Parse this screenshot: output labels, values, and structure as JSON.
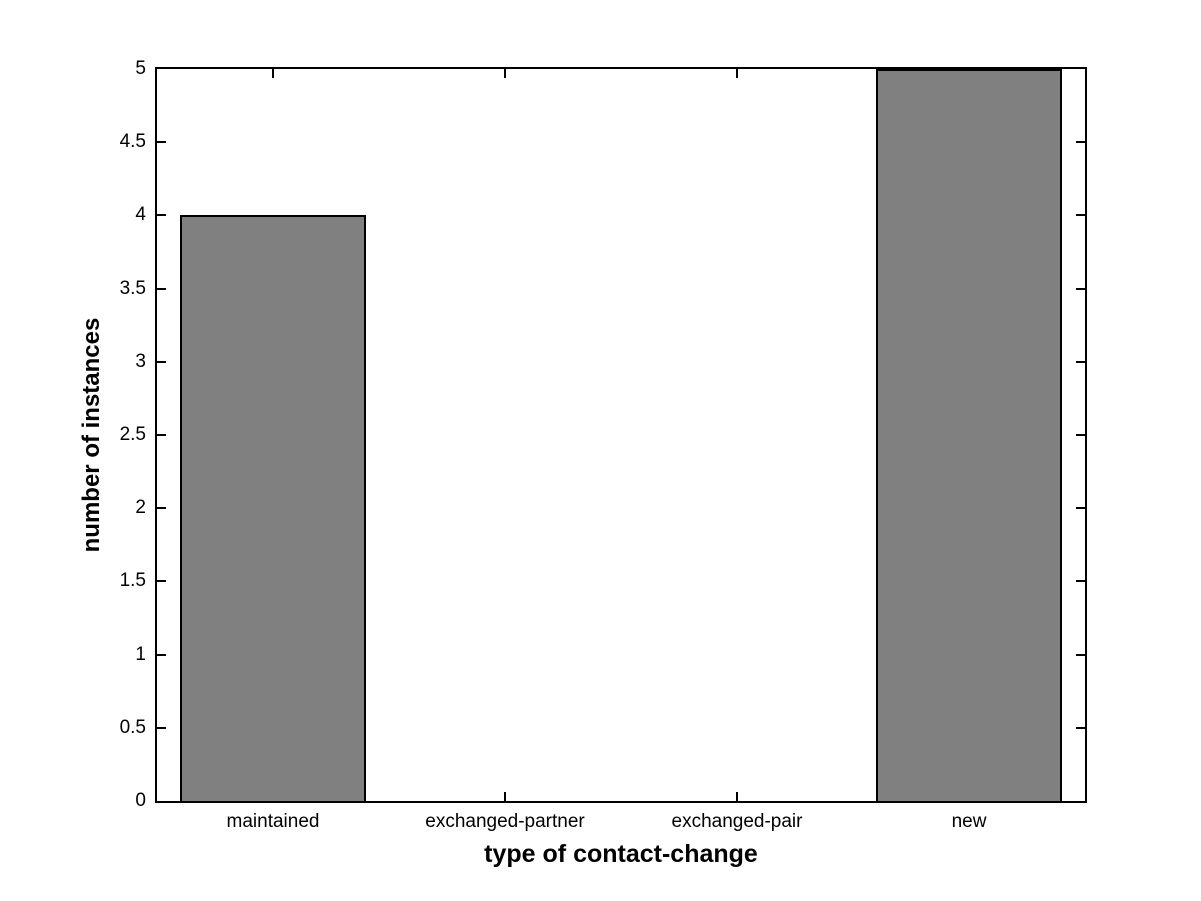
{
  "chart_data": {
    "type": "bar",
    "title": "",
    "categories": [
      "maintained",
      "exchanged-partner",
      "exchanged-pair",
      "new"
    ],
    "values": [
      4,
      0,
      0,
      5
    ],
    "xlabel": "type of contact-change",
    "ylabel": "number of instances",
    "ylim": [
      0,
      5
    ],
    "xlim": [
      0.5,
      4.5
    ],
    "yticks": [
      0,
      0.5,
      1,
      1.5,
      2,
      2.5,
      3,
      3.5,
      4,
      4.5,
      5
    ],
    "ytick_labels": [
      "0",
      "0.5",
      "1",
      "1.5",
      "2",
      "2.5",
      "3",
      "3.5",
      "4",
      "4.5",
      "5"
    ],
    "bar_width_fraction": 0.8,
    "grid": "off",
    "legend": "none",
    "bar_color": "#808080",
    "bar_edge_color": "#000000",
    "axis_color": "#000000",
    "background_color": "#ffffff",
    "tick_direction": "in"
  }
}
